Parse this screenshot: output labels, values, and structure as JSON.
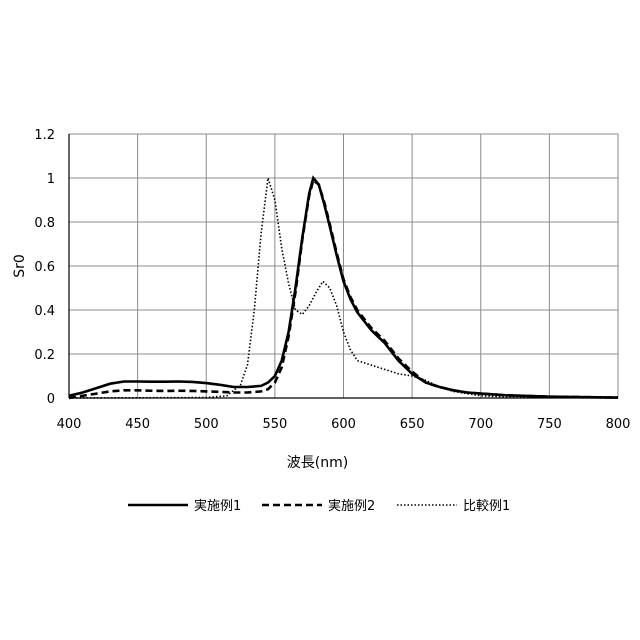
{
  "chart_data": {
    "type": "line",
    "title": "",
    "xlabel": "波長(nm)",
    "ylabel": "Sr0",
    "xlim": [
      400,
      800
    ],
    "ylim": [
      0,
      1.2
    ],
    "xticks": [
      400,
      450,
      500,
      550,
      600,
      650,
      700,
      750,
      800
    ],
    "yticks": [
      0,
      0.2,
      0.4,
      0.6,
      0.8,
      1,
      1.2
    ],
    "ytick_labels": [
      "0",
      "0.2",
      "0.4",
      "0.6",
      "0.8",
      "1",
      "1.2"
    ],
    "grid": true,
    "legend_position": "bottom",
    "series": [
      {
        "name": "実施例1",
        "style": "solid",
        "points": [
          [
            400,
            0.01
          ],
          [
            410,
            0.025
          ],
          [
            420,
            0.045
          ],
          [
            430,
            0.065
          ],
          [
            440,
            0.075
          ],
          [
            450,
            0.075
          ],
          [
            460,
            0.074
          ],
          [
            470,
            0.074
          ],
          [
            480,
            0.075
          ],
          [
            490,
            0.073
          ],
          [
            500,
            0.068
          ],
          [
            510,
            0.06
          ],
          [
            520,
            0.05
          ],
          [
            530,
            0.05
          ],
          [
            540,
            0.055
          ],
          [
            545,
            0.07
          ],
          [
            550,
            0.1
          ],
          [
            555,
            0.17
          ],
          [
            560,
            0.3
          ],
          [
            565,
            0.5
          ],
          [
            570,
            0.73
          ],
          [
            575,
            0.93
          ],
          [
            578,
            1.0
          ],
          [
            582,
            0.97
          ],
          [
            586,
            0.88
          ],
          [
            590,
            0.78
          ],
          [
            595,
            0.65
          ],
          [
            600,
            0.53
          ],
          [
            605,
            0.45
          ],
          [
            610,
            0.39
          ],
          [
            615,
            0.35
          ],
          [
            620,
            0.31
          ],
          [
            625,
            0.28
          ],
          [
            630,
            0.25
          ],
          [
            635,
            0.21
          ],
          [
            640,
            0.17
          ],
          [
            645,
            0.14
          ],
          [
            650,
            0.11
          ],
          [
            660,
            0.07
          ],
          [
            670,
            0.05
          ],
          [
            680,
            0.035
          ],
          [
            690,
            0.025
          ],
          [
            700,
            0.02
          ],
          [
            720,
            0.012
          ],
          [
            750,
            0.006
          ],
          [
            800,
            0.002
          ]
        ]
      },
      {
        "name": "実施例2",
        "style": "dashed",
        "points": [
          [
            400,
            0.0
          ],
          [
            410,
            0.01
          ],
          [
            420,
            0.02
          ],
          [
            430,
            0.03
          ],
          [
            440,
            0.035
          ],
          [
            450,
            0.035
          ],
          [
            460,
            0.033
          ],
          [
            470,
            0.032
          ],
          [
            480,
            0.033
          ],
          [
            490,
            0.032
          ],
          [
            500,
            0.03
          ],
          [
            510,
            0.028
          ],
          [
            520,
            0.025
          ],
          [
            530,
            0.025
          ],
          [
            540,
            0.03
          ],
          [
            545,
            0.04
          ],
          [
            550,
            0.07
          ],
          [
            555,
            0.14
          ],
          [
            560,
            0.28
          ],
          [
            565,
            0.48
          ],
          [
            570,
            0.72
          ],
          [
            575,
            0.92
          ],
          [
            578,
            0.99
          ],
          [
            582,
            0.97
          ],
          [
            586,
            0.89
          ],
          [
            590,
            0.79
          ],
          [
            595,
            0.66
          ],
          [
            600,
            0.54
          ],
          [
            605,
            0.46
          ],
          [
            610,
            0.4
          ],
          [
            615,
            0.36
          ],
          [
            620,
            0.32
          ],
          [
            625,
            0.29
          ],
          [
            630,
            0.26
          ],
          [
            635,
            0.22
          ],
          [
            640,
            0.18
          ],
          [
            645,
            0.15
          ],
          [
            650,
            0.12
          ],
          [
            660,
            0.07
          ],
          [
            670,
            0.05
          ],
          [
            680,
            0.035
          ],
          [
            690,
            0.025
          ],
          [
            700,
            0.02
          ],
          [
            720,
            0.012
          ],
          [
            750,
            0.006
          ],
          [
            800,
            0.002
          ]
        ]
      },
      {
        "name": "比較例1",
        "style": "dotted",
        "points": [
          [
            400,
            0.0
          ],
          [
            500,
            0.002
          ],
          [
            515,
            0.01
          ],
          [
            525,
            0.06
          ],
          [
            530,
            0.15
          ],
          [
            535,
            0.4
          ],
          [
            540,
            0.75
          ],
          [
            545,
            1.0
          ],
          [
            550,
            0.9
          ],
          [
            555,
            0.68
          ],
          [
            560,
            0.52
          ],
          [
            565,
            0.4
          ],
          [
            570,
            0.38
          ],
          [
            575,
            0.42
          ],
          [
            580,
            0.48
          ],
          [
            585,
            0.53
          ],
          [
            590,
            0.5
          ],
          [
            595,
            0.42
          ],
          [
            600,
            0.3
          ],
          [
            605,
            0.22
          ],
          [
            610,
            0.17
          ],
          [
            615,
            0.16
          ],
          [
            620,
            0.15
          ],
          [
            625,
            0.14
          ],
          [
            630,
            0.13
          ],
          [
            640,
            0.11
          ],
          [
            650,
            0.1
          ],
          [
            660,
            0.08
          ],
          [
            670,
            0.05
          ],
          [
            680,
            0.03
          ],
          [
            690,
            0.02
          ],
          [
            700,
            0.01
          ],
          [
            720,
            0.005
          ],
          [
            750,
            0.002
          ],
          [
            800,
            0.0
          ]
        ]
      }
    ]
  }
}
